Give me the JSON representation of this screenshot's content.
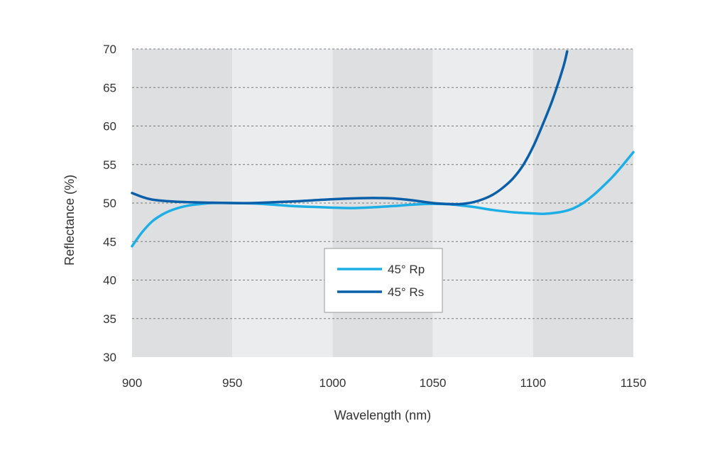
{
  "chart_data": {
    "type": "line",
    "title": "",
    "xlabel": "Wavelength (nm)",
    "ylabel": "Reflectance (%)",
    "xlim": [
      900,
      1150
    ],
    "ylim": [
      30,
      70
    ],
    "x_ticks": [
      900,
      950,
      1000,
      1050,
      1100,
      1150
    ],
    "y_ticks": [
      30,
      35,
      40,
      45,
      50,
      55,
      60,
      65,
      70
    ],
    "grid": "horizontal dashed",
    "background_bands": "alternating gray bands every 50 nm",
    "legend_position": "center-bottom",
    "series": [
      {
        "name": "45° Rp",
        "color": "#1eaee6",
        "points": [
          [
            900,
            44.4
          ],
          [
            905,
            46.2
          ],
          [
            910,
            47.6
          ],
          [
            915,
            48.5
          ],
          [
            920,
            49.1
          ],
          [
            925,
            49.5
          ],
          [
            930,
            49.75
          ],
          [
            935,
            49.9
          ],
          [
            940,
            50.0
          ],
          [
            950,
            50.0
          ],
          [
            960,
            49.95
          ],
          [
            970,
            49.8
          ],
          [
            980,
            49.6
          ],
          [
            990,
            49.5
          ],
          [
            1000,
            49.4
          ],
          [
            1010,
            49.35
          ],
          [
            1020,
            49.45
          ],
          [
            1030,
            49.6
          ],
          [
            1040,
            49.8
          ],
          [
            1050,
            49.9
          ],
          [
            1060,
            49.8
          ],
          [
            1070,
            49.5
          ],
          [
            1080,
            49.1
          ],
          [
            1090,
            48.8
          ],
          [
            1100,
            48.65
          ],
          [
            1105,
            48.6
          ],
          [
            1110,
            48.7
          ],
          [
            1115,
            48.9
          ],
          [
            1120,
            49.3
          ],
          [
            1125,
            50.0
          ],
          [
            1130,
            51.0
          ],
          [
            1135,
            52.2
          ],
          [
            1140,
            53.5
          ],
          [
            1145,
            55.0
          ],
          [
            1150,
            56.6
          ]
        ]
      },
      {
        "name": "45° Rs",
        "color": "#0a5fa8",
        "points": [
          [
            900,
            51.3
          ],
          [
            905,
            50.8
          ],
          [
            910,
            50.45
          ],
          [
            920,
            50.2
          ],
          [
            930,
            50.1
          ],
          [
            940,
            50.05
          ],
          [
            950,
            50.0
          ],
          [
            960,
            50.0
          ],
          [
            970,
            50.1
          ],
          [
            980,
            50.2
          ],
          [
            990,
            50.35
          ],
          [
            1000,
            50.5
          ],
          [
            1010,
            50.6
          ],
          [
            1020,
            50.65
          ],
          [
            1030,
            50.6
          ],
          [
            1040,
            50.35
          ],
          [
            1050,
            50.0
          ],
          [
            1060,
            49.85
          ],
          [
            1065,
            49.9
          ],
          [
            1070,
            50.1
          ],
          [
            1075,
            50.5
          ],
          [
            1080,
            51.1
          ],
          [
            1085,
            52.0
          ],
          [
            1090,
            53.2
          ],
          [
            1095,
            54.9
          ],
          [
            1100,
            57.3
          ],
          [
            1105,
            60.3
          ],
          [
            1110,
            63.6
          ],
          [
            1115,
            67.6
          ],
          [
            1117,
            69.7
          ]
        ]
      }
    ]
  }
}
